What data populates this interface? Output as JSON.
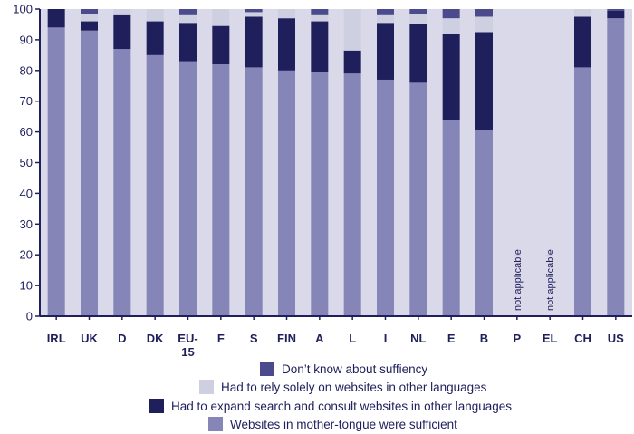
{
  "chart_data": {
    "type": "bar",
    "stacked": true,
    "ylim": [
      0,
      100
    ],
    "yticks": [
      0,
      10,
      20,
      30,
      40,
      50,
      60,
      70,
      80,
      90,
      100
    ],
    "grid": false,
    "legend_placement": "bottom",
    "categories": [
      "IRL",
      "UK",
      "D",
      "DK",
      "EU-15",
      "F",
      "S",
      "FIN",
      "A",
      "L",
      "I",
      "NL",
      "E",
      "B",
      "P",
      "EL",
      "CH",
      "US"
    ],
    "series": [
      {
        "name": "Websites in mother-tongue were sufficient",
        "color": "#8585b8",
        "values": [
          94,
          93,
          87,
          85,
          83,
          82,
          81,
          80,
          79.5,
          79,
          77,
          76,
          64,
          60.5,
          null,
          null,
          81,
          97
        ]
      },
      {
        "name": "Had to expand search and consult websites in other languages",
        "color": "#1f1f5c",
        "values": [
          6,
          3,
          11,
          11,
          12.5,
          12.5,
          16.5,
          17,
          16.5,
          7.5,
          18.5,
          19,
          28,
          32,
          null,
          null,
          16.5,
          2.5
        ]
      },
      {
        "name": "Had to rely solely on websites in other languages",
        "color": "#cfcfe2",
        "values": [
          0,
          2.5,
          2,
          4,
          2.5,
          5.5,
          1.5,
          3,
          2,
          13.5,
          2.5,
          3.5,
          5,
          5,
          null,
          null,
          2.5,
          0
        ]
      },
      {
        "name": "Don’t know about suffiency",
        "color": "#4a4a8c",
        "values": [
          0,
          1.5,
          0,
          0,
          2,
          0,
          1,
          0,
          2,
          0,
          2,
          1.5,
          3,
          2.5,
          null,
          null,
          0,
          0.5
        ]
      }
    ],
    "annotations": [
      {
        "category": "P",
        "text": "not applicable"
      },
      {
        "category": "EL",
        "text": "not applicable"
      }
    ]
  },
  "colors": {
    "plot_background": "#d9d9ea",
    "axis": "#1f1f5c",
    "text": "#1f1f5c"
  },
  "legend": [
    {
      "label": "Don’t know about suffiency",
      "color": "#4a4a8c"
    },
    {
      "label": "Had to rely solely on websites in other languages",
      "color": "#cfcfe2"
    },
    {
      "label": "Had to expand search and consult websites in other languages",
      "color": "#1f1f5c"
    },
    {
      "label": "Websites in mother-tongue were sufficient",
      "color": "#8585b8"
    }
  ]
}
